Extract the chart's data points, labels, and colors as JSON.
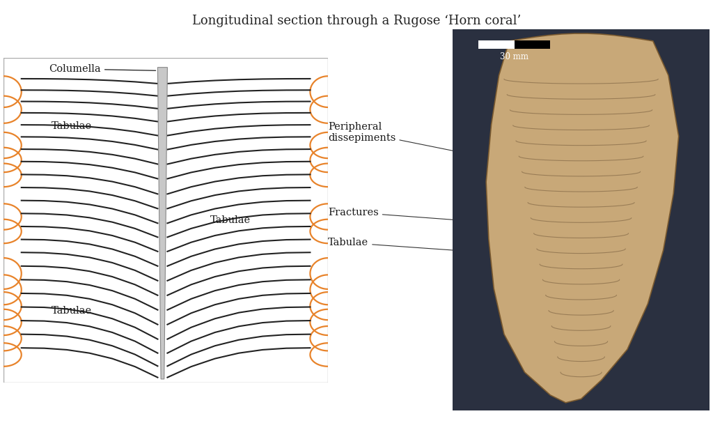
{
  "title": "Longitudinal section through a Rugose ‘Horn coral’",
  "title_fontsize": 13,
  "background_color": "#ffffff",
  "line_color": "#222222",
  "orange_color": "#e8832a",
  "columella_fill": "#c8c8c8",
  "columella_edge": "#888888",
  "label_columella": "Columella",
  "label_tabulae_upper_left": "Tabulae",
  "label_tabulae_middle_right": "Tabulae",
  "label_tabulae_lower_left": "Tabulae",
  "label_peripheral": "Peripheral\ndissepiments",
  "label_fractures": "Fractures",
  "label_tabulae_photo": "Tabulae",
  "scale_label": "30 mm",
  "photo_bg": "#2a3040",
  "coral_color": "#c8a878",
  "coral_edge": "#7a5a30"
}
